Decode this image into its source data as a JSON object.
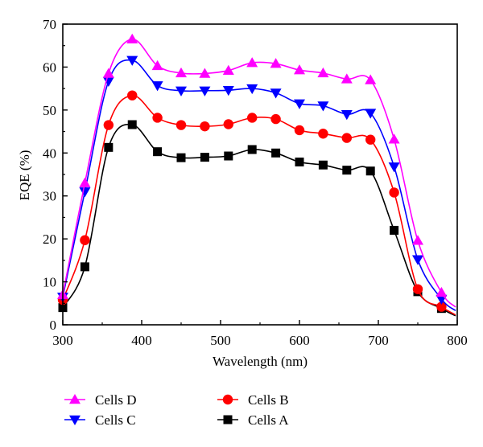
{
  "chart_data": {
    "type": "line",
    "xlabel": "Wavelength (nm)",
    "ylabel": "EQE (%)",
    "xlim": [
      300,
      800
    ],
    "ylim": [
      0,
      70
    ],
    "xticks": [
      300,
      400,
      500,
      600,
      700,
      800
    ],
    "yticks": [
      0,
      10,
      20,
      30,
      40,
      50,
      60,
      70
    ],
    "grid": false,
    "legend_position": "bottom",
    "series": [
      {
        "name": "Cells D",
        "marker": "triangle-up",
        "color": "#ff00ff",
        "points": [
          [
            300,
            7
          ],
          [
            328,
            33
          ],
          [
            358,
            58.5
          ],
          [
            388,
            66.5
          ],
          [
            420,
            60.3
          ],
          [
            450,
            58.6
          ],
          [
            480,
            58.5
          ],
          [
            510,
            59.2
          ],
          [
            540,
            61
          ],
          [
            570,
            60.8
          ],
          [
            600,
            59.3
          ],
          [
            630,
            58.6
          ],
          [
            660,
            57.2
          ],
          [
            690,
            57
          ],
          [
            720,
            43.2
          ],
          [
            750,
            19.6
          ],
          [
            780,
            7.5
          ]
        ]
      },
      {
        "name": "Cells C",
        "marker": "triangle-down",
        "color": "#0000ff",
        "points": [
          [
            300,
            6.5
          ],
          [
            328,
            31
          ],
          [
            358,
            56.7
          ],
          [
            388,
            61.6
          ],
          [
            420,
            55.7
          ],
          [
            450,
            54.5
          ],
          [
            480,
            54.5
          ],
          [
            510,
            54.6
          ],
          [
            540,
            55
          ],
          [
            570,
            54
          ],
          [
            600,
            51.5
          ],
          [
            630,
            51
          ],
          [
            660,
            49
          ],
          [
            690,
            49.3
          ],
          [
            720,
            36.8
          ],
          [
            750,
            15.2
          ],
          [
            780,
            6
          ]
        ]
      },
      {
        "name": "Cells B",
        "marker": "circle",
        "color": "#ff0000",
        "points": [
          [
            300,
            5.8
          ],
          [
            328,
            19.7
          ],
          [
            358,
            46.5
          ],
          [
            388,
            53.4
          ],
          [
            420,
            48.2
          ],
          [
            450,
            46.5
          ],
          [
            480,
            46.2
          ],
          [
            510,
            46.7
          ],
          [
            540,
            48.2
          ],
          [
            570,
            47.9
          ],
          [
            600,
            45.3
          ],
          [
            630,
            44.5
          ],
          [
            660,
            43.5
          ],
          [
            690,
            43.1
          ],
          [
            720,
            30.8
          ],
          [
            750,
            8.3
          ],
          [
            780,
            4.2
          ]
        ]
      },
      {
        "name": "Cells A",
        "marker": "square",
        "color": "#000000",
        "points": [
          [
            300,
            4
          ],
          [
            328,
            13.5
          ],
          [
            358,
            41.3
          ],
          [
            388,
            46.6
          ],
          [
            420,
            40.3
          ],
          [
            450,
            38.9
          ],
          [
            480,
            39
          ],
          [
            510,
            39.3
          ],
          [
            540,
            40.8
          ],
          [
            570,
            40
          ],
          [
            600,
            37.9
          ],
          [
            630,
            37.2
          ],
          [
            660,
            36
          ],
          [
            690,
            35.8
          ],
          [
            720,
            22
          ],
          [
            750,
            7.7
          ],
          [
            780,
            3.8
          ]
        ]
      }
    ]
  }
}
